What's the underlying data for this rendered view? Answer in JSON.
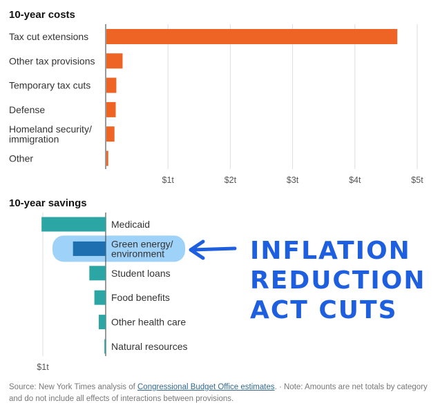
{
  "chart_data": [
    {
      "type": "bar",
      "orientation": "horizontal",
      "title": "10-year costs",
      "categories": [
        [
          "Tax cut extensions"
        ],
        [
          "Other tax provisions"
        ],
        [
          "Temporary tax cuts"
        ],
        [
          "Defense"
        ],
        [
          "Homeland security/",
          "immigration"
        ],
        [
          "Other"
        ]
      ],
      "values": [
        4.67,
        0.26,
        0.16,
        0.15,
        0.13,
        0.03
      ],
      "xlim": [
        0,
        5
      ],
      "ticks": [
        1,
        2,
        3,
        4,
        5
      ],
      "tick_labels": [
        "$1t",
        "$2t",
        "$3t",
        "$4t",
        "$5t"
      ],
      "unit": "trillion dollars",
      "color": "#ee6425",
      "grid": true
    },
    {
      "type": "bar",
      "orientation": "horizontal",
      "direction": "leftward",
      "title": "10-year savings",
      "categories": [
        [
          "Medicaid"
        ],
        [
          "Green energy/",
          "environment"
        ],
        [
          "Student loans"
        ],
        [
          "Food benefits"
        ],
        [
          "Other health care"
        ],
        [
          "Natural resources"
        ]
      ],
      "values": [
        1.02,
        0.52,
        0.26,
        0.18,
        0.11,
        0.02
      ],
      "xlim": [
        0,
        1.1
      ],
      "ticks": [
        1
      ],
      "tick_labels": [
        "$1t"
      ],
      "unit": "trillion dollars",
      "color": "#2ba6a4",
      "highlight_index": 1,
      "highlight_color": "#1d6fb0",
      "grid": true
    }
  ],
  "annotation": {
    "lines": [
      "INFLATION",
      "REDUCTION",
      "ACT CUTS"
    ],
    "color": "#1e5fe0"
  },
  "footer": {
    "source_prefix": "Source: New York Times analysis of ",
    "source_link": "Congressional Budget Office estimates",
    "source_suffix": ".  ·  Note: Amounts are net totals by category and do not include all effects of interactions between provisions."
  }
}
